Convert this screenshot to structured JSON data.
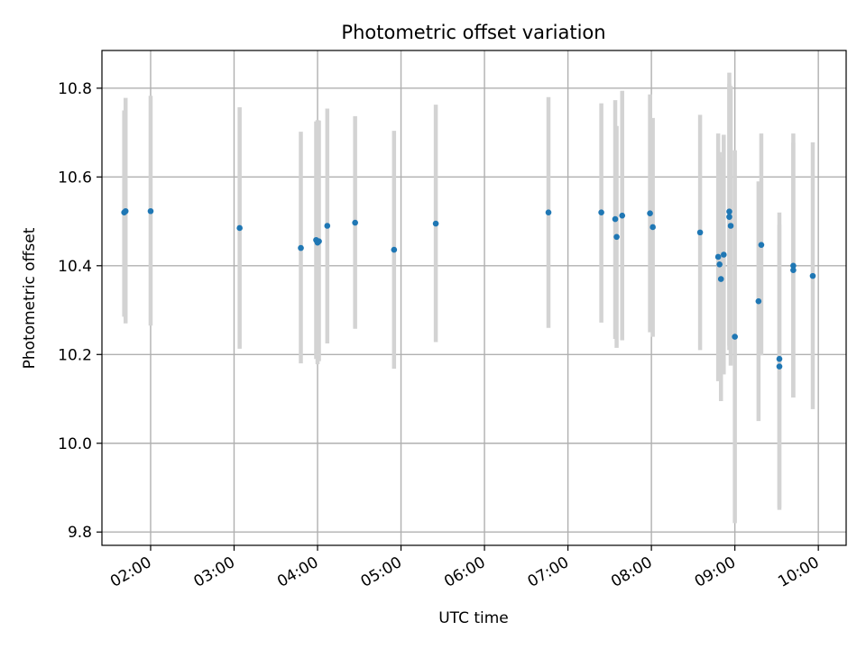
{
  "chart_data": {
    "type": "scatter",
    "title": "Photometric offset variation",
    "xlabel": "UTC time",
    "ylabel": "Photometric offset",
    "xlim": [
      "01:25",
      "10:20"
    ],
    "ylim": [
      9.77,
      10.885
    ],
    "x_ticks": [
      "02:00",
      "03:00",
      "04:00",
      "05:00",
      "06:00",
      "07:00",
      "08:00",
      "09:00",
      "10:00"
    ],
    "y_ticks": [
      9.8,
      10.0,
      10.2,
      10.4,
      10.6,
      10.8
    ],
    "grid": true,
    "error_bar_color": "#d3d3d3",
    "marker_color": "#1f77b4",
    "points": [
      {
        "x": "01:41",
        "y": 10.52,
        "yerr_low": 10.285,
        "yerr_high": 10.75
      },
      {
        "x": "01:42",
        "y": 10.523,
        "yerr_low": 10.27,
        "yerr_high": 10.778
      },
      {
        "x": "02:00",
        "y": 10.523,
        "yerr_low": 10.265,
        "yerr_high": 10.783
      },
      {
        "x": "03:04",
        "y": 10.485,
        "yerr_low": 10.213,
        "yerr_high": 10.757
      },
      {
        "x": "03:48",
        "y": 10.44,
        "yerr_low": 10.18,
        "yerr_high": 10.702
      },
      {
        "x": "03:59",
        "y": 10.458,
        "yerr_low": 10.19,
        "yerr_high": 10.725
      },
      {
        "x": "04:00",
        "y": 10.452,
        "yerr_low": 10.178,
        "yerr_high": 10.728
      },
      {
        "x": "04:01",
        "y": 10.455,
        "yerr_low": 10.185,
        "yerr_high": 10.727
      },
      {
        "x": "04:07",
        "y": 10.49,
        "yerr_low": 10.225,
        "yerr_high": 10.754
      },
      {
        "x": "04:27",
        "y": 10.497,
        "yerr_low": 10.258,
        "yerr_high": 10.737
      },
      {
        "x": "04:55",
        "y": 10.436,
        "yerr_low": 10.168,
        "yerr_high": 10.704
      },
      {
        "x": "05:25",
        "y": 10.495,
        "yerr_low": 10.228,
        "yerr_high": 10.763
      },
      {
        "x": "06:46",
        "y": 10.52,
        "yerr_low": 10.26,
        "yerr_high": 10.78
      },
      {
        "x": "07:24",
        "y": 10.52,
        "yerr_low": 10.272,
        "yerr_high": 10.766
      },
      {
        "x": "07:34",
        "y": 10.505,
        "yerr_low": 10.235,
        "yerr_high": 10.773
      },
      {
        "x": "07:35",
        "y": 10.465,
        "yerr_low": 10.215,
        "yerr_high": 10.715
      },
      {
        "x": "07:39",
        "y": 10.513,
        "yerr_low": 10.232,
        "yerr_high": 10.794
      },
      {
        "x": "07:59",
        "y": 10.518,
        "yerr_low": 10.25,
        "yerr_high": 10.786
      },
      {
        "x": "08:01",
        "y": 10.487,
        "yerr_low": 10.24,
        "yerr_high": 10.733
      },
      {
        "x": "08:35",
        "y": 10.475,
        "yerr_low": 10.21,
        "yerr_high": 10.74
      },
      {
        "x": "08:48",
        "y": 10.42,
        "yerr_low": 10.14,
        "yerr_high": 10.698
      },
      {
        "x": "08:49",
        "y": 10.403,
        "yerr_low": 10.15,
        "yerr_high": 10.656
      },
      {
        "x": "08:50",
        "y": 10.37,
        "yerr_low": 10.095,
        "yerr_high": 10.644
      },
      {
        "x": "08:52",
        "y": 10.425,
        "yerr_low": 10.155,
        "yerr_high": 10.695
      },
      {
        "x": "08:56",
        "y": 10.522,
        "yerr_low": 10.22,
        "yerr_high": 10.835
      },
      {
        "x": "08:56",
        "y": 10.51,
        "yerr_low": 10.21,
        "yerr_high": 10.81
      },
      {
        "x": "08:57",
        "y": 10.49,
        "yerr_low": 10.175,
        "yerr_high": 10.805
      },
      {
        "x": "09:00",
        "y": 10.24,
        "yerr_low": 9.82,
        "yerr_high": 10.66
      },
      {
        "x": "09:17",
        "y": 10.32,
        "yerr_low": 10.05,
        "yerr_high": 10.59
      },
      {
        "x": "09:19",
        "y": 10.447,
        "yerr_low": 10.198,
        "yerr_high": 10.698
      },
      {
        "x": "09:32",
        "y": 10.19,
        "yerr_low": 9.85,
        "yerr_high": 10.52
      },
      {
        "x": "09:32",
        "y": 10.173,
        "yerr_low": 9.855,
        "yerr_high": 10.492
      },
      {
        "x": "09:42",
        "y": 10.4,
        "yerr_low": 10.103,
        "yerr_high": 10.698
      },
      {
        "x": "09:42",
        "y": 10.39,
        "yerr_low": 10.103,
        "yerr_high": 10.677
      },
      {
        "x": "09:56",
        "y": 10.377,
        "yerr_low": 10.077,
        "yerr_high": 10.678
      }
    ]
  }
}
